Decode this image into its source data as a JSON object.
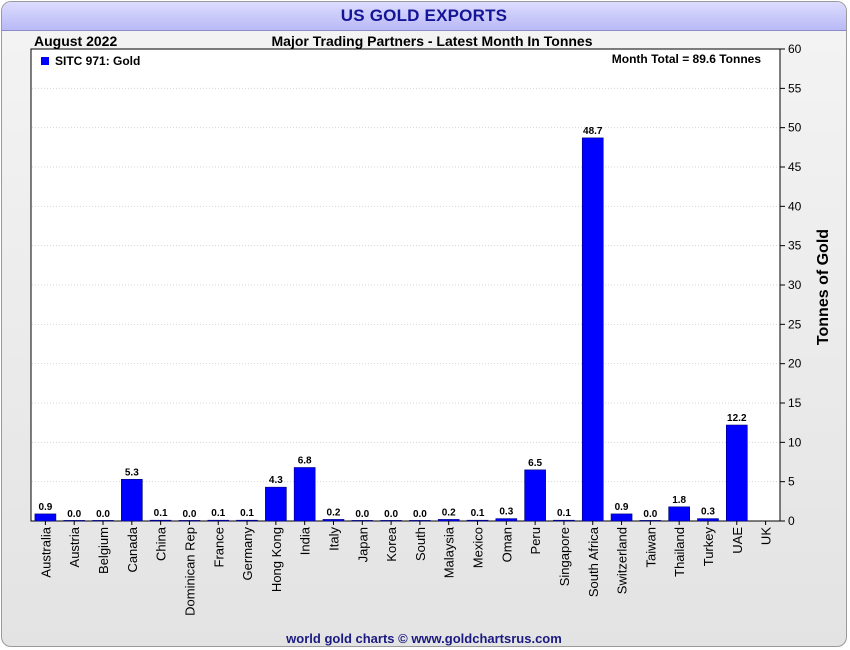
{
  "header": {
    "title": "US GOLD EXPORTS",
    "date": "August 2022",
    "subtitle": "Major Trading Partners - Latest Month In Tonnes"
  },
  "legend": {
    "label": "SITC 971: Gold",
    "month_total": "Month Total = 89.6 Tonnes"
  },
  "footer": "world gold charts © www.goldchartsrus.com",
  "colors": {
    "bar": "#0000ff",
    "title_text": "#141496"
  },
  "chart_data": {
    "type": "bar",
    "title": "US GOLD EXPORTS",
    "subtitle": "Major Trading Partners - Latest Month In Tonnes",
    "ylabel": "Tonnes of Gold",
    "ylim": [
      0,
      60
    ],
    "yticks": [
      0,
      5,
      10,
      15,
      20,
      25,
      30,
      35,
      40,
      45,
      50,
      55,
      60
    ],
    "grid": true,
    "legend_position": "top-left",
    "categories": [
      "Australia",
      "Austria",
      "Belgium",
      "Canada",
      "China",
      "Dominican Rep",
      "France",
      "Germany",
      "Hong Kong",
      "India",
      "Italy",
      "Japan",
      "Korea",
      "South",
      "Malaysia",
      "Mexico",
      "Oman",
      "Peru",
      "Singapore",
      "South Africa",
      "Switzerland",
      "Taiwan",
      "Thailand",
      "Turkey",
      "UAE",
      "UK"
    ],
    "series": [
      {
        "name": "SITC 971: Gold",
        "values": [
          0.9,
          0.0,
          0.0,
          5.3,
          0.1,
          0.0,
          0.1,
          0.1,
          4.3,
          6.8,
          0.2,
          0.0,
          0.0,
          0.0,
          0.2,
          0.1,
          0.3,
          6.5,
          0.1,
          48.7,
          0.9,
          0.0,
          1.8,
          0.3,
          12.2,
          null
        ],
        "labels": [
          "0.9",
          "0.0",
          "0.0",
          "5.3",
          "0.1",
          "0.0",
          "0.1",
          "0.1",
          "4.3",
          "6.8",
          "0.2",
          "0.0",
          "0.0",
          "0.0",
          "0.2",
          "0.1",
          "0.3",
          "6.5",
          "0.1",
          "48.7",
          "0.9",
          "0.0",
          "1.8",
          "0.3",
          "12.2",
          ""
        ]
      }
    ]
  }
}
